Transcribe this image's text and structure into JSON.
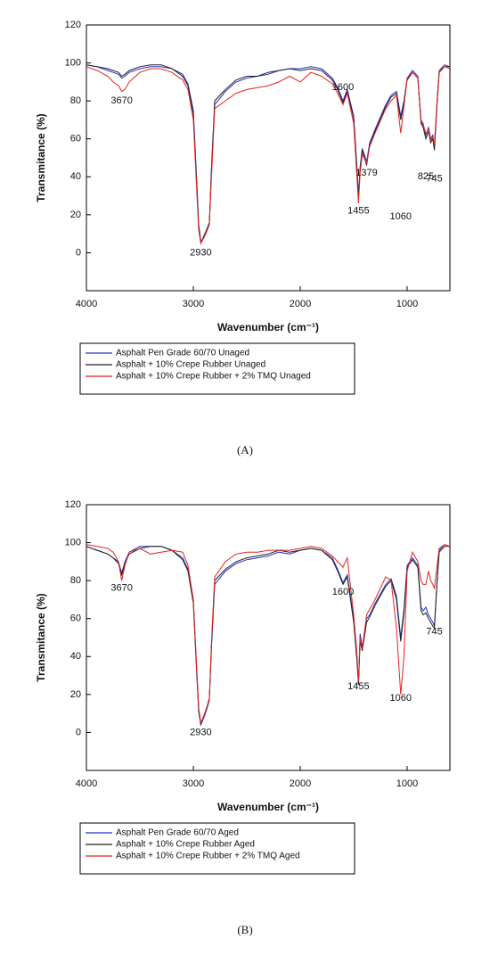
{
  "chart_data": [
    {
      "type": "line",
      "caption": "(A)",
      "x_label": "Wavenumber (cm⁻¹)",
      "y_label": "Transmitance (%)",
      "xlim": [
        4000,
        600
      ],
      "xticks": [
        4000,
        3000,
        2000,
        1000
      ],
      "ylim": [
        -20,
        120
      ],
      "yticks": [
        0,
        20,
        40,
        60,
        80,
        100,
        120
      ],
      "x": [
        4000,
        3900,
        3800,
        3750,
        3700,
        3670,
        3640,
        3600,
        3500,
        3400,
        3300,
        3200,
        3100,
        3050,
        3000,
        2970,
        2950,
        2930,
        2900,
        2870,
        2850,
        2830,
        2800,
        2700,
        2600,
        2500,
        2400,
        2300,
        2200,
        2100,
        2000,
        1900,
        1800,
        1700,
        1650,
        1600,
        1560,
        1500,
        1470,
        1455,
        1440,
        1420,
        1379,
        1350,
        1300,
        1200,
        1150,
        1100,
        1060,
        1030,
        1000,
        950,
        900,
        870,
        850,
        825,
        800,
        780,
        760,
        745,
        720,
        700,
        650,
        600
      ],
      "series": [
        {
          "name": "Asphalt Pen Grade 60/70 Unaged",
          "color": "#2233cc",
          "values": [
            99,
            98,
            96,
            95,
            94,
            92,
            93,
            95,
            97,
            98,
            98,
            97,
            94,
            89,
            75,
            40,
            15,
            6,
            8,
            12,
            15,
            45,
            78,
            85,
            90,
            92,
            93,
            94,
            96,
            97,
            97,
            98,
            97,
            92,
            87,
            80,
            86,
            72,
            45,
            30,
            45,
            55,
            48,
            58,
            65,
            78,
            83,
            85,
            72,
            80,
            92,
            96,
            93,
            70,
            68,
            62,
            66,
            60,
            62,
            56,
            80,
            96,
            99,
            98
          ]
        },
        {
          "name": "Asphalt + 10% Crepe Rubber Unaged",
          "color": "#222222",
          "values": [
            99,
            98,
            97,
            96,
            95,
            93,
            94,
            96,
            98,
            99,
            99,
            97,
            93,
            88,
            73,
            38,
            14,
            5,
            9,
            13,
            16,
            44,
            80,
            86,
            91,
            93,
            93,
            95,
            96,
            97,
            96,
            97,
            96,
            91,
            86,
            79,
            85,
            71,
            44,
            29,
            44,
            54,
            46,
            57,
            64,
            77,
            82,
            84,
            70,
            79,
            91,
            95,
            92,
            68,
            66,
            60,
            64,
            58,
            60,
            54,
            78,
            95,
            98,
            98
          ]
        },
        {
          "name": "Asphalt + 10% Crepe Rubber + 2% TMQ Unaged",
          "color": "#e8231f",
          "values": [
            98,
            96,
            93,
            90,
            88,
            85,
            86,
            90,
            95,
            97,
            97,
            95,
            91,
            86,
            70,
            35,
            12,
            5,
            8,
            12,
            15,
            40,
            76,
            80,
            84,
            86,
            87,
            88,
            90,
            93,
            90,
            95,
            93,
            89,
            84,
            78,
            84,
            68,
            40,
            26,
            42,
            52,
            47,
            56,
            63,
            76,
            80,
            83,
            63,
            77,
            92,
            95,
            92,
            69,
            67,
            63,
            65,
            59,
            61,
            57,
            80,
            96,
            98,
            97
          ]
        }
      ],
      "annotations": [
        {
          "label": "3670",
          "x": 3670,
          "y": 80
        },
        {
          "label": "2930",
          "x": 2930,
          "y": 0
        },
        {
          "label": "1600",
          "x": 1600,
          "y": 87
        },
        {
          "label": "1455",
          "x": 1455,
          "y": 22
        },
        {
          "label": "1379",
          "x": 1379,
          "y": 42
        },
        {
          "label": "1060",
          "x": 1060,
          "y": 19
        },
        {
          "label": "825",
          "x": 825,
          "y": 40
        },
        {
          "label": "745",
          "x": 745,
          "y": 39
        }
      ]
    },
    {
      "type": "line",
      "caption": "(B)",
      "x_label": "Wavenumber (cm⁻¹)",
      "y_label": "Transmitance (%)",
      "xlim": [
        4000,
        600
      ],
      "xticks": [
        4000,
        3000,
        2000,
        1000
      ],
      "ylim": [
        -20,
        120
      ],
      "yticks": [
        0,
        20,
        40,
        60,
        80,
        100,
        120
      ],
      "x": [
        4000,
        3900,
        3800,
        3750,
        3700,
        3670,
        3640,
        3600,
        3500,
        3400,
        3300,
        3200,
        3100,
        3050,
        3000,
        2970,
        2950,
        2930,
        2900,
        2870,
        2850,
        2830,
        2800,
        2700,
        2600,
        2500,
        2400,
        2300,
        2200,
        2100,
        2000,
        1900,
        1800,
        1700,
        1650,
        1600,
        1560,
        1500,
        1470,
        1455,
        1440,
        1420,
        1379,
        1350,
        1300,
        1200,
        1150,
        1100,
        1060,
        1030,
        1000,
        950,
        900,
        870,
        850,
        825,
        800,
        780,
        760,
        745,
        720,
        700,
        650,
        600
      ],
      "series": [
        {
          "name": "Asphalt Pen Grade 60/70 Aged",
          "color": "#2233cc",
          "values": [
            98,
            96,
            94,
            92,
            90,
            84,
            90,
            95,
            98,
            98,
            98,
            96,
            92,
            86,
            70,
            35,
            12,
            4,
            8,
            13,
            17,
            45,
            78,
            85,
            89,
            91,
            92,
            93,
            95,
            94,
            96,
            97,
            96,
            92,
            86,
            79,
            83,
            60,
            40,
            26,
            52,
            45,
            60,
            62,
            68,
            78,
            81,
            72,
            50,
            65,
            88,
            92,
            88,
            66,
            64,
            66,
            62,
            60,
            58,
            56,
            80,
            96,
            99,
            98
          ]
        },
        {
          "name": "Asphalt + 10% Crepe Rubber Aged",
          "color": "#222222",
          "values": [
            98,
            96,
            94,
            92,
            89,
            83,
            89,
            94,
            97,
            98,
            98,
            96,
            91,
            85,
            68,
            33,
            11,
            4,
            9,
            14,
            18,
            46,
            80,
            86,
            90,
            92,
            93,
            94,
            96,
            95,
            96,
            97,
            96,
            91,
            85,
            78,
            82,
            58,
            38,
            25,
            48,
            43,
            58,
            61,
            67,
            77,
            80,
            70,
            48,
            63,
            87,
            91,
            87,
            64,
            62,
            63,
            60,
            58,
            56,
            55,
            79,
            95,
            98,
            98
          ]
        },
        {
          "name": "Asphalt + 10% Crepe Rubber + 2% TMQ Aged",
          "color": "#e8231f",
          "values": [
            99,
            98,
            97,
            95,
            90,
            80,
            88,
            95,
            97,
            94,
            95,
            96,
            95,
            88,
            70,
            36,
            13,
            5,
            9,
            14,
            18,
            48,
            82,
            90,
            94,
            95,
            95,
            96,
            96,
            96,
            97,
            98,
            97,
            93,
            90,
            87,
            92,
            62,
            42,
            27,
            50,
            44,
            62,
            65,
            70,
            82,
            80,
            55,
            20,
            40,
            85,
            95,
            90,
            80,
            78,
            78,
            85,
            80,
            78,
            76,
            88,
            97,
            99,
            98
          ]
        }
      ],
      "annotations": [
        {
          "label": "3670",
          "x": 3670,
          "y": 76
        },
        {
          "label": "2930",
          "x": 2930,
          "y": 0
        },
        {
          "label": "1600",
          "x": 1600,
          "y": 74
        },
        {
          "label": "1455",
          "x": 1455,
          "y": 24
        },
        {
          "label": "1060",
          "x": 1060,
          "y": 18
        },
        {
          "label": "745",
          "x": 745,
          "y": 53
        }
      ]
    }
  ]
}
